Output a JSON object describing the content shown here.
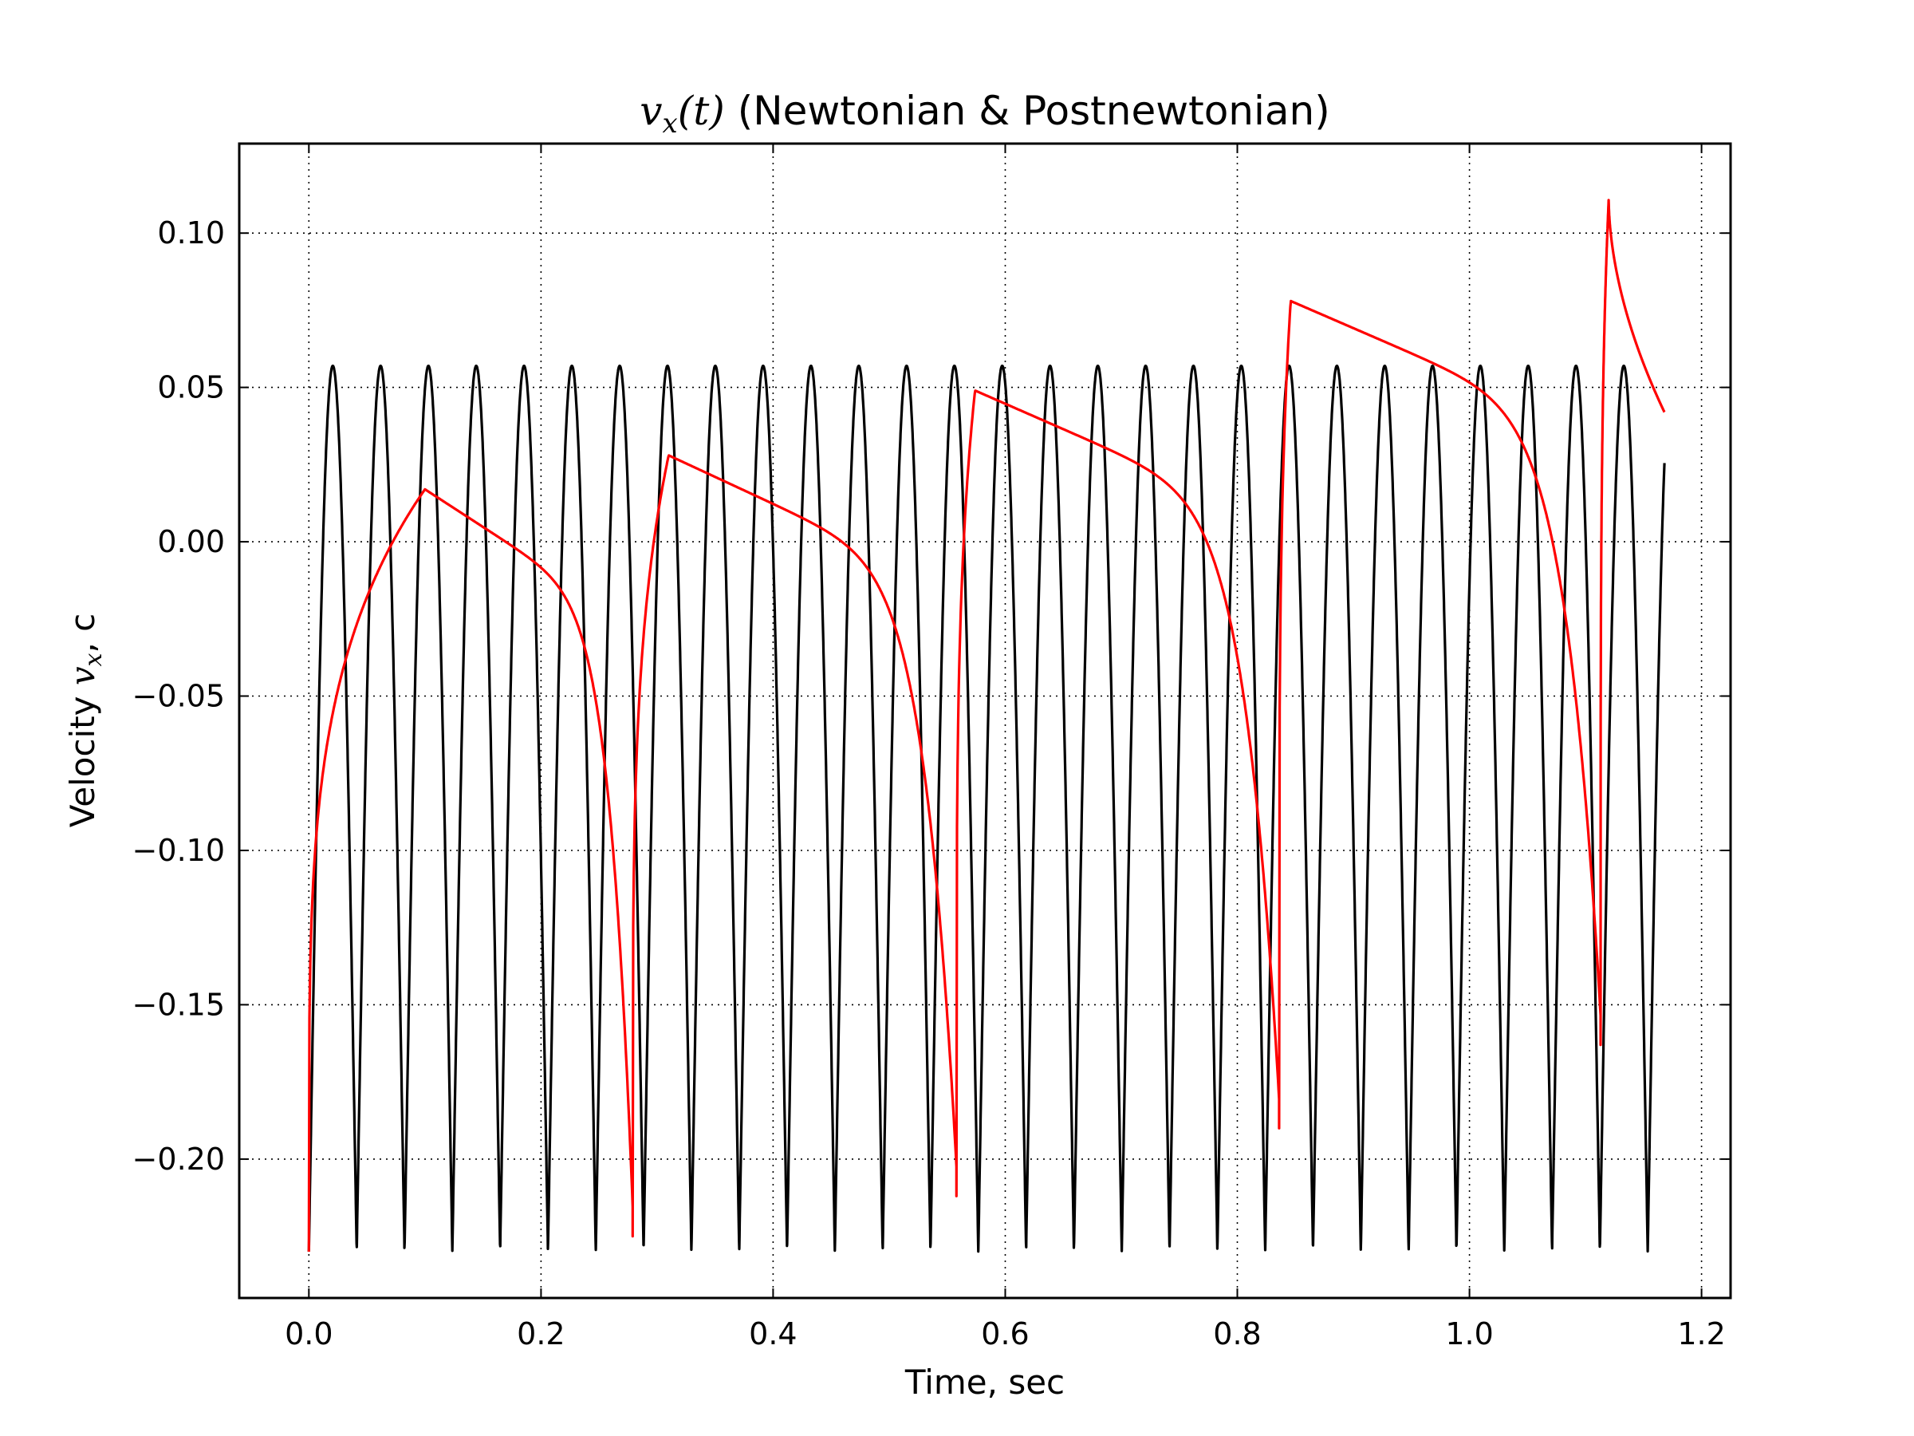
{
  "chart_data": {
    "type": "line",
    "title": {
      "math_main": "v",
      "math_sub": "x",
      "math_arg": "(t)",
      "text": " (Newtonian & Postnewtonian)"
    },
    "xlabel": "Time, sec",
    "ylabel": {
      "prefix": "Velocity ",
      "math_main": "v",
      "math_sub": "x",
      "suffix": ", c"
    },
    "xlim": [
      -0.06,
      1.225
    ],
    "ylim": [
      -0.245,
      0.129
    ],
    "grid": true,
    "grid_style": "dotted",
    "x_ticks": [
      0.0,
      0.2,
      0.4,
      0.6,
      0.8,
      1.0,
      1.2
    ],
    "x_tick_labels": [
      "0.0",
      "0.2",
      "0.4",
      "0.6",
      "0.8",
      "1.0",
      "1.2"
    ],
    "y_ticks": [
      0.1,
      0.05,
      0.0,
      -0.05,
      -0.1,
      -0.15,
      -0.2
    ],
    "y_tick_labels": [
      "0.10",
      "0.05",
      "0.00",
      "−0.05",
      "−0.10",
      "−0.15",
      "−0.20"
    ],
    "series": [
      {
        "color": "#000000",
        "kind": "periodic-orbit",
        "period": 0.0412,
        "max": 0.057,
        "min": -0.23,
        "t_start": 0.0,
        "t_end": 1.168,
        "end_value": 0.053
      },
      {
        "color": "#ff0000",
        "kind": "precessing-orbit",
        "periods": [
          {
            "t_start": 0.0,
            "t_end": 0.279,
            "start": -0.23,
            "peak": 0.017,
            "peak_t": 0.1,
            "dip": -0.225
          },
          {
            "t_start": 0.279,
            "t_end": 0.558,
            "start": -0.225,
            "peak": 0.028,
            "peak_t": 0.31,
            "dip": -0.212
          },
          {
            "t_start": 0.558,
            "t_end": 0.836,
            "start": -0.212,
            "peak": 0.049,
            "peak_t": 0.574,
            "dip": -0.19
          },
          {
            "t_start": 0.836,
            "t_end": 1.113,
            "start": -0.19,
            "peak": 0.078,
            "peak_t": 0.846,
            "dip": -0.163
          },
          {
            "t_start": 1.113,
            "t_end": 1.168,
            "start": -0.163,
            "peak": 0.111,
            "peak_t": 1.12,
            "dip": 0.042
          }
        ],
        "zero_crossings_t": [
          0.24,
          0.5,
          0.72,
          0.99
        ]
      }
    ]
  }
}
